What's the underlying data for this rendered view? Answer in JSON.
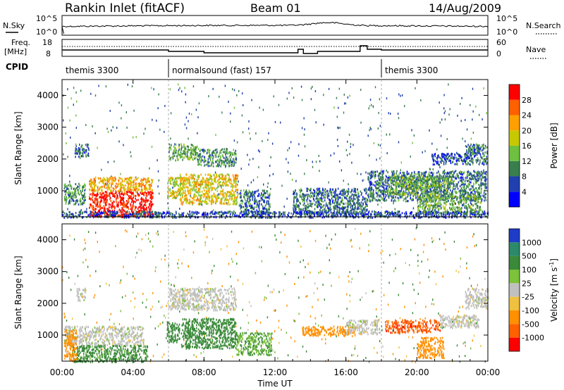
{
  "header": {
    "title": "Rankin Inlet (fitACF)",
    "beam": "Beam 01",
    "date": "14/Aug/2009"
  },
  "noise_panel": {
    "left_label": "N.Sky",
    "right_label": "N.Search",
    "left_ticks": [
      "10^5",
      "10^0"
    ],
    "right_ticks": [
      "10^5",
      "10^0"
    ]
  },
  "freq_panel": {
    "left_label_1": "Freq.",
    "left_label_2": "[MHz]",
    "right_label": "Nave",
    "left_ticks": [
      "18",
      "8"
    ],
    "right_ticks": [
      "60",
      "0"
    ]
  },
  "cpid": {
    "label": "CPID",
    "segments": [
      {
        "name": "themis 3300",
        "start_hour": 0,
        "end_hour": 6
      },
      {
        "name": "normalsound (fast) 157",
        "start_hour": 6,
        "end_hour": 18
      },
      {
        "name": "themis 3300",
        "start_hour": 18,
        "end_hour": 24
      }
    ]
  },
  "chart_data": [
    {
      "type": "heatmap",
      "title": "",
      "xlabel": "",
      "ylabel": "Slant Range [km]",
      "xlim": [
        0,
        24
      ],
      "ylim": [
        180,
        4500
      ],
      "yticks": [
        1000,
        2000,
        3000,
        4000
      ],
      "colorbar": {
        "label": "Power [dB]",
        "ticks": [
          "4",
          "8",
          "12",
          "16",
          "20",
          "24",
          "28"
        ],
        "range": [
          0,
          30
        ],
        "colors": [
          "#0000ff",
          "#2040b0",
          "#3a7e4e",
          "#6fc040",
          "#c8c800",
          "#ffa000",
          "#ff6000",
          "#ff0000"
        ]
      },
      "regions": [
        {
          "t0": 0.1,
          "t1": 1.3,
          "r0": 600,
          "r1": 1250,
          "value": 10
        },
        {
          "t0": 1.5,
          "t1": 5.1,
          "r0": 200,
          "r1": 1000,
          "value": 28
        },
        {
          "t0": 1.5,
          "t1": 5.1,
          "r0": 1000,
          "r1": 1450,
          "value": 20
        },
        {
          "t0": 0.7,
          "t1": 1.5,
          "r0": 2100,
          "r1": 2500,
          "value": 8
        },
        {
          "t0": 5.9,
          "t1": 6.7,
          "r0": 800,
          "r1": 1450,
          "value": 16
        },
        {
          "t0": 6.6,
          "t1": 9.9,
          "r0": 600,
          "r1": 1550,
          "value": 18
        },
        {
          "t0": 6.0,
          "t1": 7.6,
          "r0": 2000,
          "r1": 2500,
          "value": 12
        },
        {
          "t0": 7.6,
          "t1": 9.8,
          "r0": 1800,
          "r1": 2350,
          "value": 10
        },
        {
          "t0": 10.0,
          "t1": 11.7,
          "r0": 300,
          "r1": 1050,
          "value": 8
        },
        {
          "t0": 13.0,
          "t1": 17.2,
          "r0": 300,
          "r1": 1100,
          "value": 8
        },
        {
          "t0": 17.2,
          "t1": 23.9,
          "r0": 700,
          "r1": 1650,
          "value": 8
        },
        {
          "t0": 18.3,
          "t1": 21.9,
          "r0": 900,
          "r1": 1500,
          "value": 12
        },
        {
          "t0": 20.0,
          "t1": 23.6,
          "r0": 300,
          "r1": 900,
          "value": 12
        },
        {
          "t0": 20.8,
          "t1": 23.0,
          "r0": 1850,
          "r1": 2200,
          "value": 6
        },
        {
          "t0": 22.7,
          "t1": 23.95,
          "r0": 1850,
          "r1": 2500,
          "value": 8
        },
        {
          "t0": 0.0,
          "t1": 24.0,
          "r0": 180,
          "r1": 380,
          "value": 6
        }
      ]
    },
    {
      "type": "heatmap",
      "title": "",
      "xlabel": "Time UT",
      "ylabel": "Slant Range [km]",
      "xlim": [
        0,
        24
      ],
      "ylim": [
        180,
        4500
      ],
      "xticks": [
        "00:00",
        "04:00",
        "08:00",
        "12:00",
        "16:00",
        "20:00",
        "00:00"
      ],
      "yticks": [
        1000,
        2000,
        3000,
        4000
      ],
      "colorbar": {
        "label": "Velocity [m s^-1]",
        "ticks": [
          "1000",
          "500",
          "100",
          "25",
          "-25",
          "-100",
          "-500",
          "-1000"
        ],
        "colors": [
          "#1e3cc8",
          "#2a8a6a",
          "#3a8a3a",
          "#7cc23a",
          "#c0c0c0",
          "#f0c040",
          "#ff9000",
          "#ff6000",
          "#ff0000"
        ]
      },
      "regions": [
        {
          "t0": 0.1,
          "t1": 4.6,
          "r0": 700,
          "r1": 1300,
          "value": 0
        },
        {
          "t0": 0.5,
          "t1": 4.8,
          "r0": 180,
          "r1": 700,
          "value": 150
        },
        {
          "t0": 0.1,
          "t1": 0.8,
          "r0": 200,
          "r1": 1200,
          "value": -300
        },
        {
          "t0": 0.8,
          "t1": 1.3,
          "r0": 2100,
          "r1": 2500,
          "value": 0
        },
        {
          "t0": 5.9,
          "t1": 6.6,
          "r0": 800,
          "r1": 1450,
          "value": 300
        },
        {
          "t0": 6.7,
          "t1": 9.8,
          "r0": 600,
          "r1": 1550,
          "value": 200
        },
        {
          "t0": 6.0,
          "t1": 9.8,
          "r0": 1800,
          "r1": 2500,
          "value": 0
        },
        {
          "t0": 9.8,
          "t1": 11.8,
          "r0": 400,
          "r1": 1100,
          "value": 100
        },
        {
          "t0": 13.5,
          "t1": 16.5,
          "r0": 1000,
          "r1": 1300,
          "value": -300
        },
        {
          "t0": 16.0,
          "t1": 17.9,
          "r0": 1050,
          "r1": 1500,
          "value": 0
        },
        {
          "t0": 18.2,
          "t1": 21.3,
          "r0": 1100,
          "r1": 1500,
          "value": -800
        },
        {
          "t0": 20.0,
          "t1": 21.5,
          "r0": 300,
          "r1": 950,
          "value": -300
        },
        {
          "t0": 21.3,
          "t1": 23.5,
          "r0": 1250,
          "r1": 1650,
          "value": 0
        },
        {
          "t0": 22.7,
          "t1": 24.0,
          "r0": 1850,
          "r1": 2500,
          "value": 0
        }
      ]
    }
  ]
}
